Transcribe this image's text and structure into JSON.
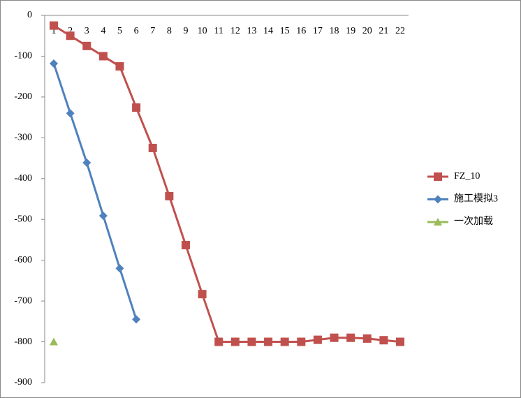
{
  "chart_data": {
    "type": "line",
    "categories": [
      "1",
      "2",
      "3",
      "4",
      "5",
      "6",
      "7",
      "8",
      "9",
      "10",
      "11",
      "12",
      "13",
      "14",
      "15",
      "16",
      "17",
      "18",
      "19",
      "20",
      "21",
      "22"
    ],
    "series": [
      {
        "name": "FZ_10",
        "color": "#c0504d",
        "marker": "square",
        "values": [
          -25,
          -50,
          -75,
          -100,
          -125,
          -226,
          -325,
          -443,
          -563,
          -683,
          -800,
          -800,
          -800,
          -800,
          -800,
          -800,
          -795,
          -790,
          -790,
          -792,
          -796,
          -800
        ]
      },
      {
        "name": "施工模拟3",
        "color": "#4f81bd",
        "marker": "diamond",
        "values": [
          -118,
          -240,
          -361,
          -491,
          -620,
          -745,
          null,
          null,
          null,
          null,
          null,
          null,
          null,
          null,
          null,
          null,
          null,
          null,
          null,
          null,
          null,
          null
        ]
      },
      {
        "name": "一次加载",
        "color": "#9bbb59",
        "marker": "triangle",
        "values": [
          -800,
          null,
          null,
          null,
          null,
          null,
          null,
          null,
          null,
          null,
          null,
          null,
          null,
          null,
          null,
          null,
          null,
          null,
          null,
          null,
          null,
          null
        ]
      }
    ],
    "ylim": [
      -900,
      0
    ],
    "yticks": [
      0,
      -100,
      -200,
      -300,
      -400,
      -500,
      -600,
      -700,
      -800,
      -900
    ],
    "legend": "right"
  }
}
